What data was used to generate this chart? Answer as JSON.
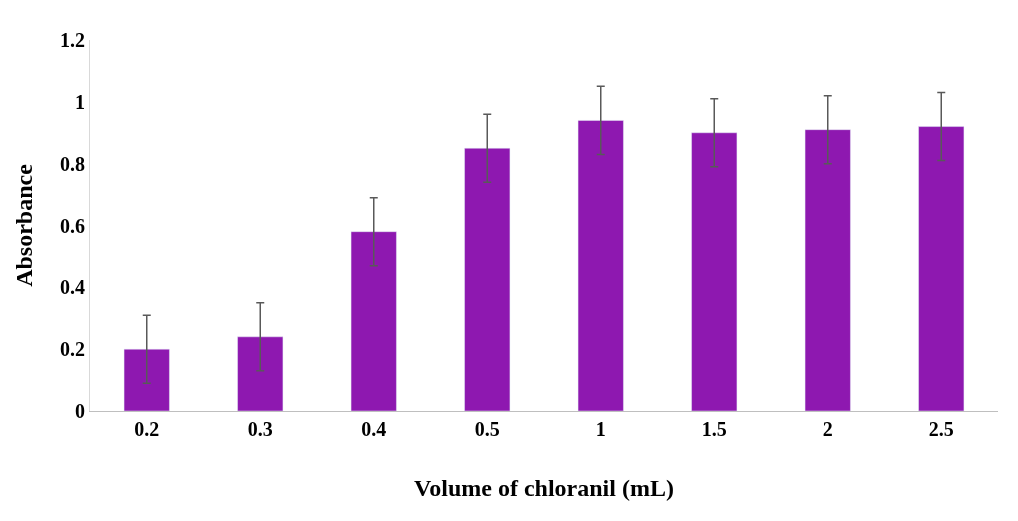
{
  "chart_data": {
    "type": "bar",
    "xlabel": "Volume of chloranil (mL)",
    "ylabel": "Absorbance",
    "categories": [
      "0.2",
      "0.3",
      "0.4",
      "0.5",
      "1",
      "1.5",
      "2",
      "2.5"
    ],
    "values": [
      0.2,
      0.24,
      0.58,
      0.85,
      0.94,
      0.9,
      0.91,
      0.92
    ],
    "errors": [
      0.11,
      0.11,
      0.11,
      0.11,
      0.11,
      0.11,
      0.11,
      0.11
    ],
    "color": "#8e18b0",
    "ylim": [
      0,
      1.2
    ],
    "yticks": [
      0,
      0.2,
      0.4,
      0.6,
      0.8,
      1,
      1.2
    ]
  }
}
